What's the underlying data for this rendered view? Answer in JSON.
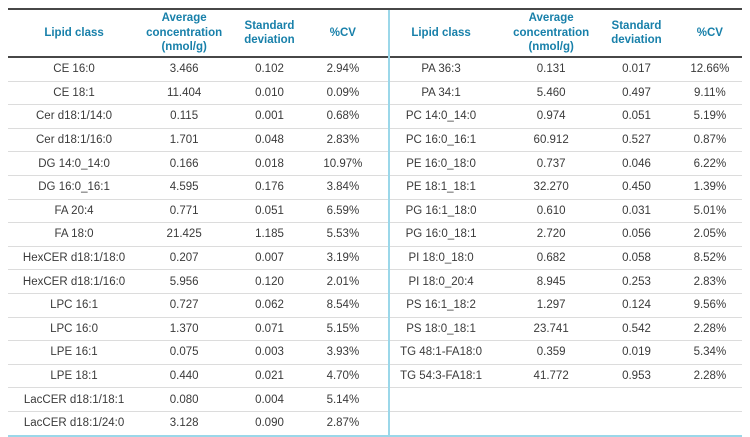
{
  "colors": {
    "header_text": "#1880aa",
    "body_text": "#3a3a3a",
    "dark_rule": "#474747",
    "row_rule": "#dcdcdc",
    "accent_rule": "#9bd7e9",
    "background": "#ffffff"
  },
  "chart_data": [
    {
      "type": "table",
      "title": "Lipid class average concentrations (left panel)",
      "headers": [
        "Lipid class",
        "Average concentration (nmol/g)",
        "Standard deviation",
        "%CV"
      ],
      "rows": [
        [
          "CE 16:0",
          "3.466",
          "0.102",
          "2.94%"
        ],
        [
          "CE 18:1",
          "11.404",
          "0.010",
          "0.09%"
        ],
        [
          "Cer d18:1/14:0",
          "0.115",
          "0.001",
          "0.68%"
        ],
        [
          "Cer d18:1/16:0",
          "1.701",
          "0.048",
          "2.83%"
        ],
        [
          "DG 14:0_14:0",
          "0.166",
          "0.018",
          "10.97%"
        ],
        [
          "DG 16:0_16:1",
          "4.595",
          "0.176",
          "3.84%"
        ],
        [
          "FA 20:4",
          "0.771",
          "0.051",
          "6.59%"
        ],
        [
          "FA 18:0",
          "21.425",
          "1.185",
          "5.53%"
        ],
        [
          "HexCER d18:1/18:0",
          "0.207",
          "0.007",
          "3.19%"
        ],
        [
          "HexCER d18:1/16:0",
          "5.956",
          "0.120",
          "2.01%"
        ],
        [
          "LPC 16:1",
          "0.727",
          "0.062",
          "8.54%"
        ],
        [
          "LPC 16:0",
          "1.370",
          "0.071",
          "5.15%"
        ],
        [
          "LPE 16:1",
          "0.075",
          "0.003",
          "3.93%"
        ],
        [
          "LPE 18:1",
          "0.440",
          "0.021",
          "4.70%"
        ],
        [
          "LacCER d18:1/18:1",
          "0.080",
          "0.004",
          "5.14%"
        ],
        [
          "LacCER d18:1/24:0",
          "3.128",
          "0.090",
          "2.87%"
        ]
      ]
    },
    {
      "type": "table",
      "title": "Lipid class average concentrations (right panel)",
      "headers": [
        "Lipid class",
        "Average concentration (nmol/g)",
        "Standard deviation",
        "%CV"
      ],
      "rows": [
        [
          "PA 36:3",
          "0.131",
          "0.017",
          "12.66%"
        ],
        [
          "PA 34:1",
          "5.460",
          "0.497",
          "9.11%"
        ],
        [
          "PC 14:0_14:0",
          "0.974",
          "0.051",
          "5.19%"
        ],
        [
          "PC 16:0_16:1",
          "60.912",
          "0.527",
          "0.87%"
        ],
        [
          "PE 16:0_18:0",
          "0.737",
          "0.046",
          "6.22%"
        ],
        [
          "PE 18:1_18:1",
          "32.270",
          "0.450",
          "1.39%"
        ],
        [
          "PG 16:1_18:0",
          "0.610",
          "0.031",
          "5.01%"
        ],
        [
          "PG 16:0_18:1",
          "2.720",
          "0.056",
          "2.05%"
        ],
        [
          "PI 18:0_18:0",
          "0.682",
          "0.058",
          "8.52%"
        ],
        [
          "PI 18:0_20:4",
          "8.945",
          "0.253",
          "2.83%"
        ],
        [
          "PS 16:1_18:2",
          "1.297",
          "0.124",
          "9.56%"
        ],
        [
          "PS 18:0_18:1",
          "23.741",
          "0.542",
          "2.28%"
        ],
        [
          "TG 48:1-FA18:0",
          "0.359",
          "0.019",
          "5.34%"
        ],
        [
          "TG 54:3-FA18:1",
          "41.772",
          "0.953",
          "2.28%"
        ],
        [
          "",
          "",
          "",
          ""
        ],
        [
          "",
          "",
          "",
          ""
        ]
      ]
    }
  ]
}
